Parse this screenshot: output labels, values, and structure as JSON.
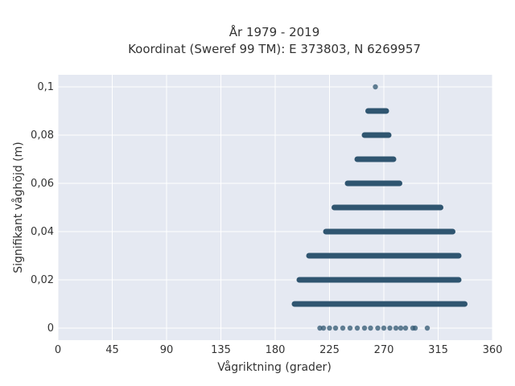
{
  "chart_data": {
    "type": "scatter",
    "title_line1": "År 1979 - 2019",
    "title_line2": "Koordinat (Sweref 99 TM): E 373803, N 6269957",
    "xlabel": "Vågriktning (grader)",
    "ylabel": "Signifikant våghöjd (m)",
    "xlim": [
      0,
      360
    ],
    "ylim": [
      -0.005,
      0.105
    ],
    "xticks": [
      0,
      45,
      90,
      135,
      180,
      225,
      270,
      315,
      360
    ],
    "xtick_labels": [
      "0",
      "45",
      "90",
      "135",
      "180",
      "225",
      "270",
      "315",
      "360"
    ],
    "yticks": [
      0,
      0.02,
      0.04,
      0.06,
      0.08,
      0.1
    ],
    "ytick_labels": [
      "0",
      "0,02",
      "0,04",
      "0,06",
      "0,08",
      "0,1"
    ],
    "grid": true,
    "marker_color": "#2f5570",
    "plot_background": "#e5e9f2",
    "bands": [
      {
        "y": 0.1,
        "x_min": 263,
        "x_max": 263
      },
      {
        "y": 0.09,
        "x_min": 257,
        "x_max": 272
      },
      {
        "y": 0.08,
        "x_min": 254,
        "x_max": 274
      },
      {
        "y": 0.07,
        "x_min": 248,
        "x_max": 278
      },
      {
        "y": 0.06,
        "x_min": 240,
        "x_max": 283
      },
      {
        "y": 0.05,
        "x_min": 229,
        "x_max": 317
      },
      {
        "y": 0.04,
        "x_min": 222,
        "x_max": 327
      },
      {
        "y": 0.03,
        "x_min": 208,
        "x_max": 332
      },
      {
        "y": 0.02,
        "x_min": 200,
        "x_max": 332
      },
      {
        "y": 0.01,
        "x_min": 196,
        "x_max": 337
      }
    ],
    "zero_points": [
      217,
      220,
      225,
      230,
      236,
      242,
      248,
      254,
      259,
      265,
      270,
      275,
      280,
      284,
      288,
      294,
      296,
      306
    ]
  }
}
